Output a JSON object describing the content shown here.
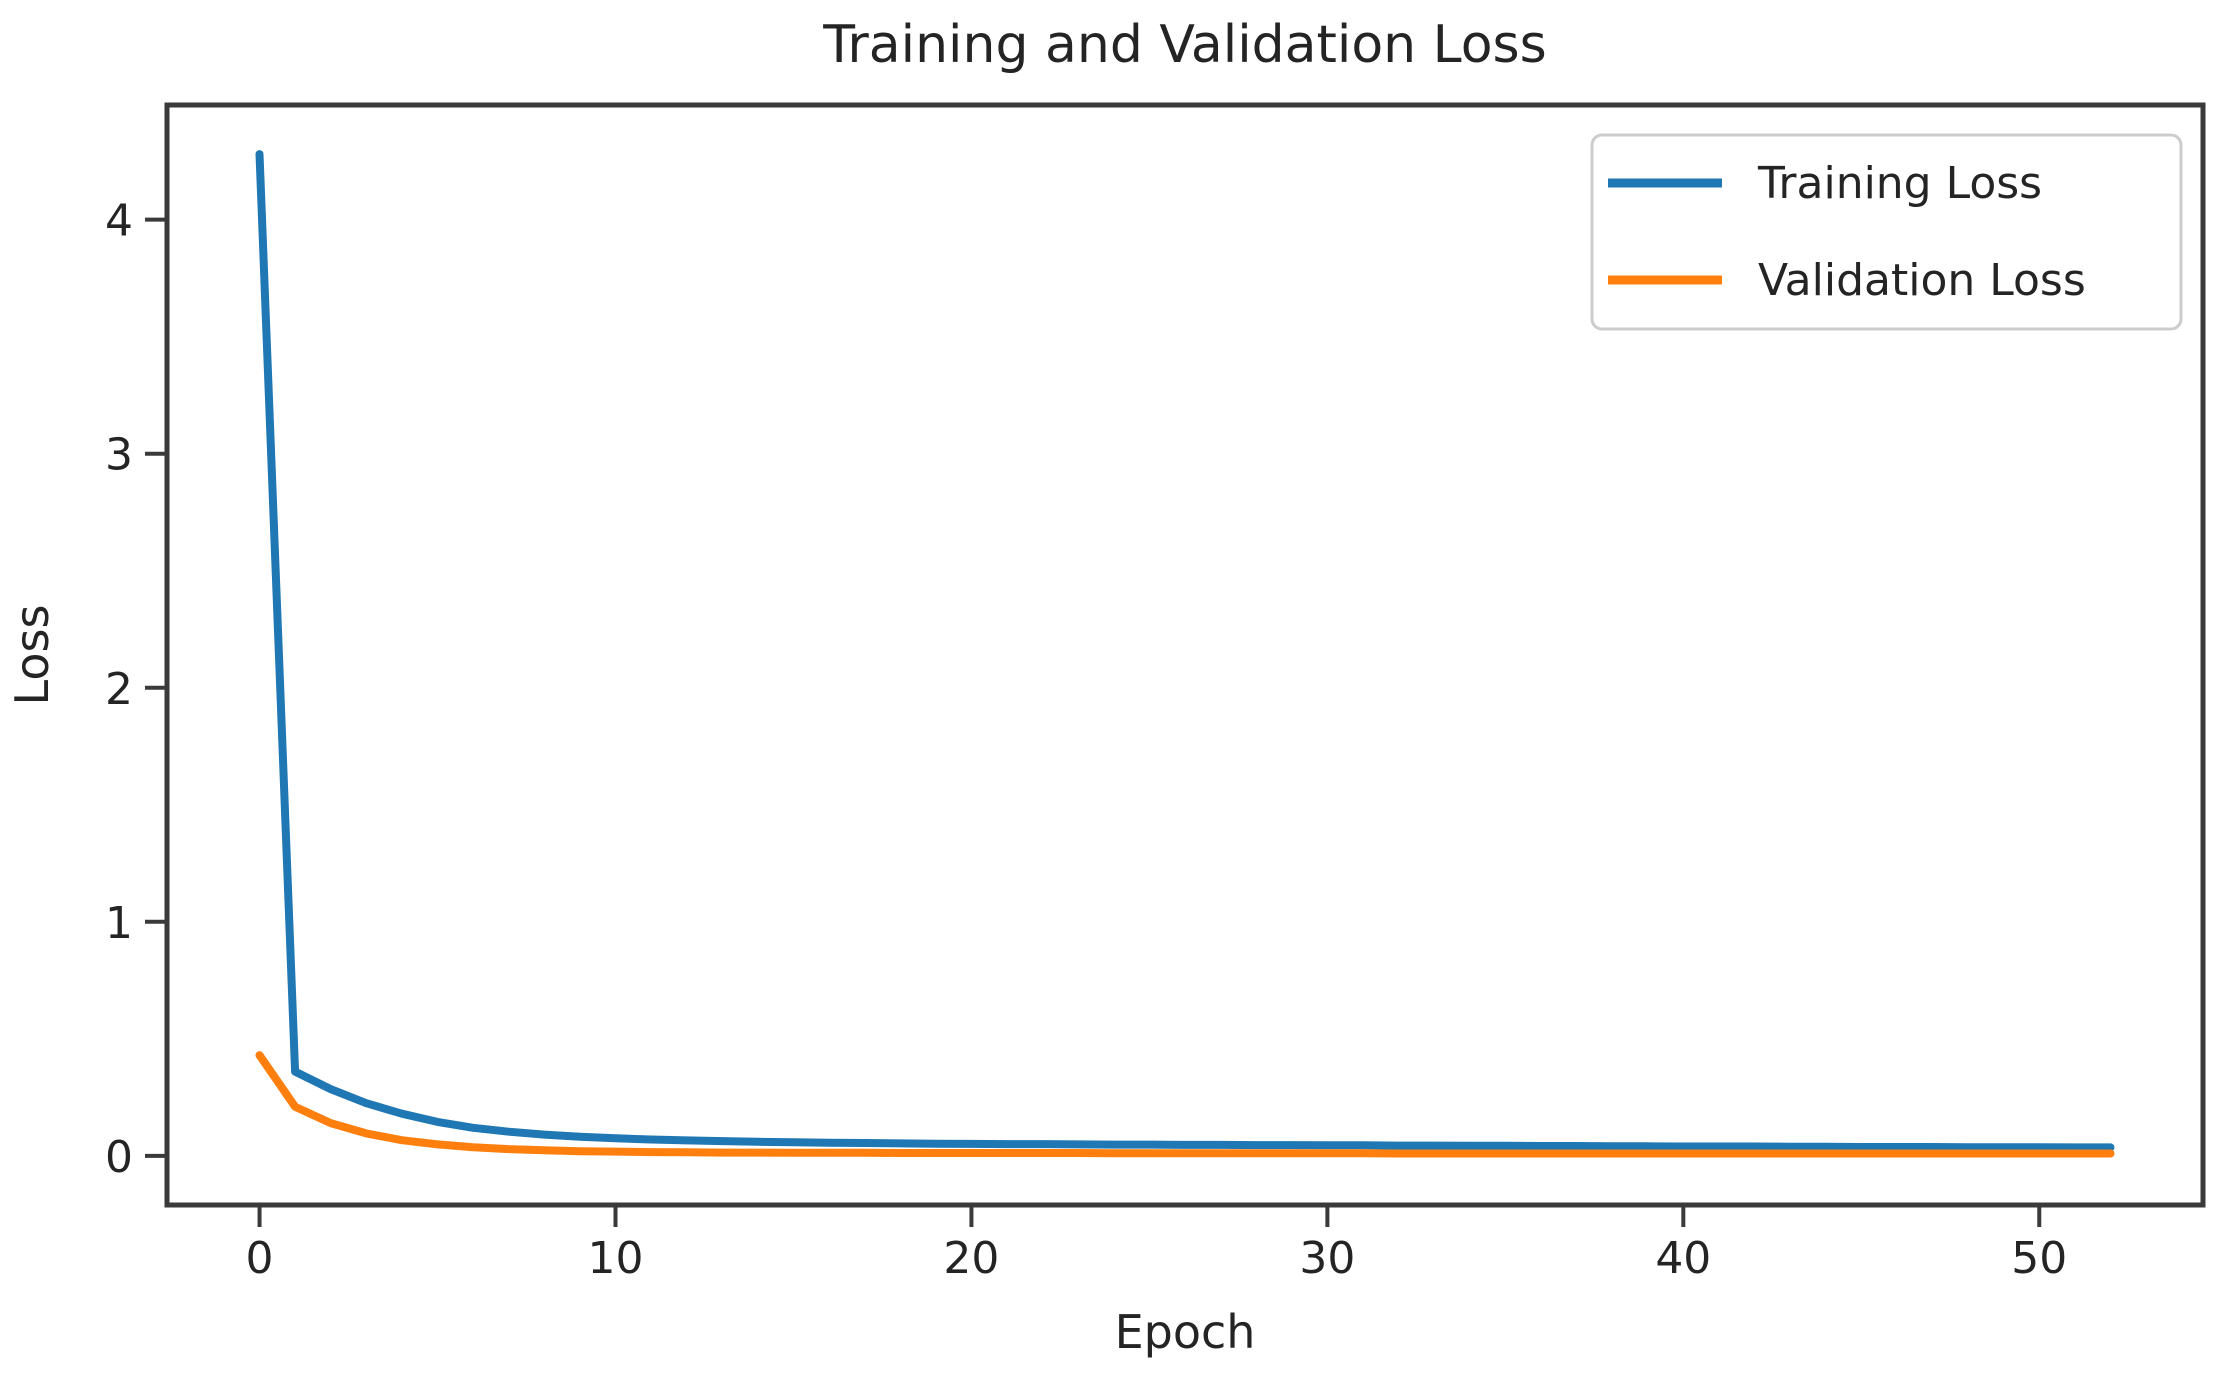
{
  "figure": {
    "background": "#ffffff",
    "spine_color": "#3a3a3a",
    "text_color": "#242424"
  },
  "chart_data": {
    "type": "line",
    "title": "Training and Validation Loss",
    "xlabel": "Epoch",
    "ylabel": "Loss",
    "xlim": [
      -2.6,
      54.6
    ],
    "ylim": [
      -0.21,
      4.49
    ],
    "x_ticks": [
      0,
      10,
      20,
      30,
      40,
      50
    ],
    "y_ticks": [
      0,
      1,
      2,
      3,
      4
    ],
    "grid": false,
    "legend_position": "upper right",
    "legend_border_color": "#cccccc",
    "x": [
      0,
      1,
      2,
      3,
      4,
      5,
      6,
      7,
      8,
      9,
      10,
      11,
      12,
      13,
      14,
      15,
      16,
      17,
      18,
      19,
      20,
      21,
      22,
      23,
      24,
      25,
      26,
      27,
      28,
      29,
      30,
      31,
      32,
      33,
      34,
      35,
      36,
      37,
      38,
      39,
      40,
      41,
      42,
      43,
      44,
      45,
      46,
      47,
      48,
      49,
      50,
      51,
      52
    ],
    "series": [
      {
        "name": "Training Loss",
        "color": "#1f77b4",
        "values": [
          4.28,
          0.36,
          0.285,
          0.225,
          0.18,
          0.145,
          0.12,
          0.103,
          0.091,
          0.082,
          0.075,
          0.07,
          0.066,
          0.063,
          0.06,
          0.058,
          0.056,
          0.055,
          0.053,
          0.052,
          0.051,
          0.05,
          0.05,
          0.049,
          0.048,
          0.048,
          0.047,
          0.047,
          0.046,
          0.046,
          0.045,
          0.045,
          0.044,
          0.044,
          0.043,
          0.043,
          0.042,
          0.042,
          0.041,
          0.041,
          0.04,
          0.04,
          0.04,
          0.039,
          0.039,
          0.038,
          0.038,
          0.038,
          0.037,
          0.037,
          0.037,
          0.036,
          0.036
        ]
      },
      {
        "name": "Validation Loss",
        "color": "#ff7f0e",
        "values": [
          0.43,
          0.21,
          0.14,
          0.096,
          0.067,
          0.049,
          0.037,
          0.029,
          0.024,
          0.02,
          0.018,
          0.016,
          0.015,
          0.014,
          0.014,
          0.013,
          0.013,
          0.013,
          0.012,
          0.012,
          0.012,
          0.012,
          0.012,
          0.012,
          0.011,
          0.011,
          0.011,
          0.011,
          0.011,
          0.011,
          0.011,
          0.011,
          0.01,
          0.01,
          0.01,
          0.01,
          0.01,
          0.01,
          0.01,
          0.01,
          0.01,
          0.01,
          0.01,
          0.01,
          0.01,
          0.01,
          0.01,
          0.01,
          0.01,
          0.01,
          0.01,
          0.01,
          0.01
        ]
      }
    ]
  }
}
